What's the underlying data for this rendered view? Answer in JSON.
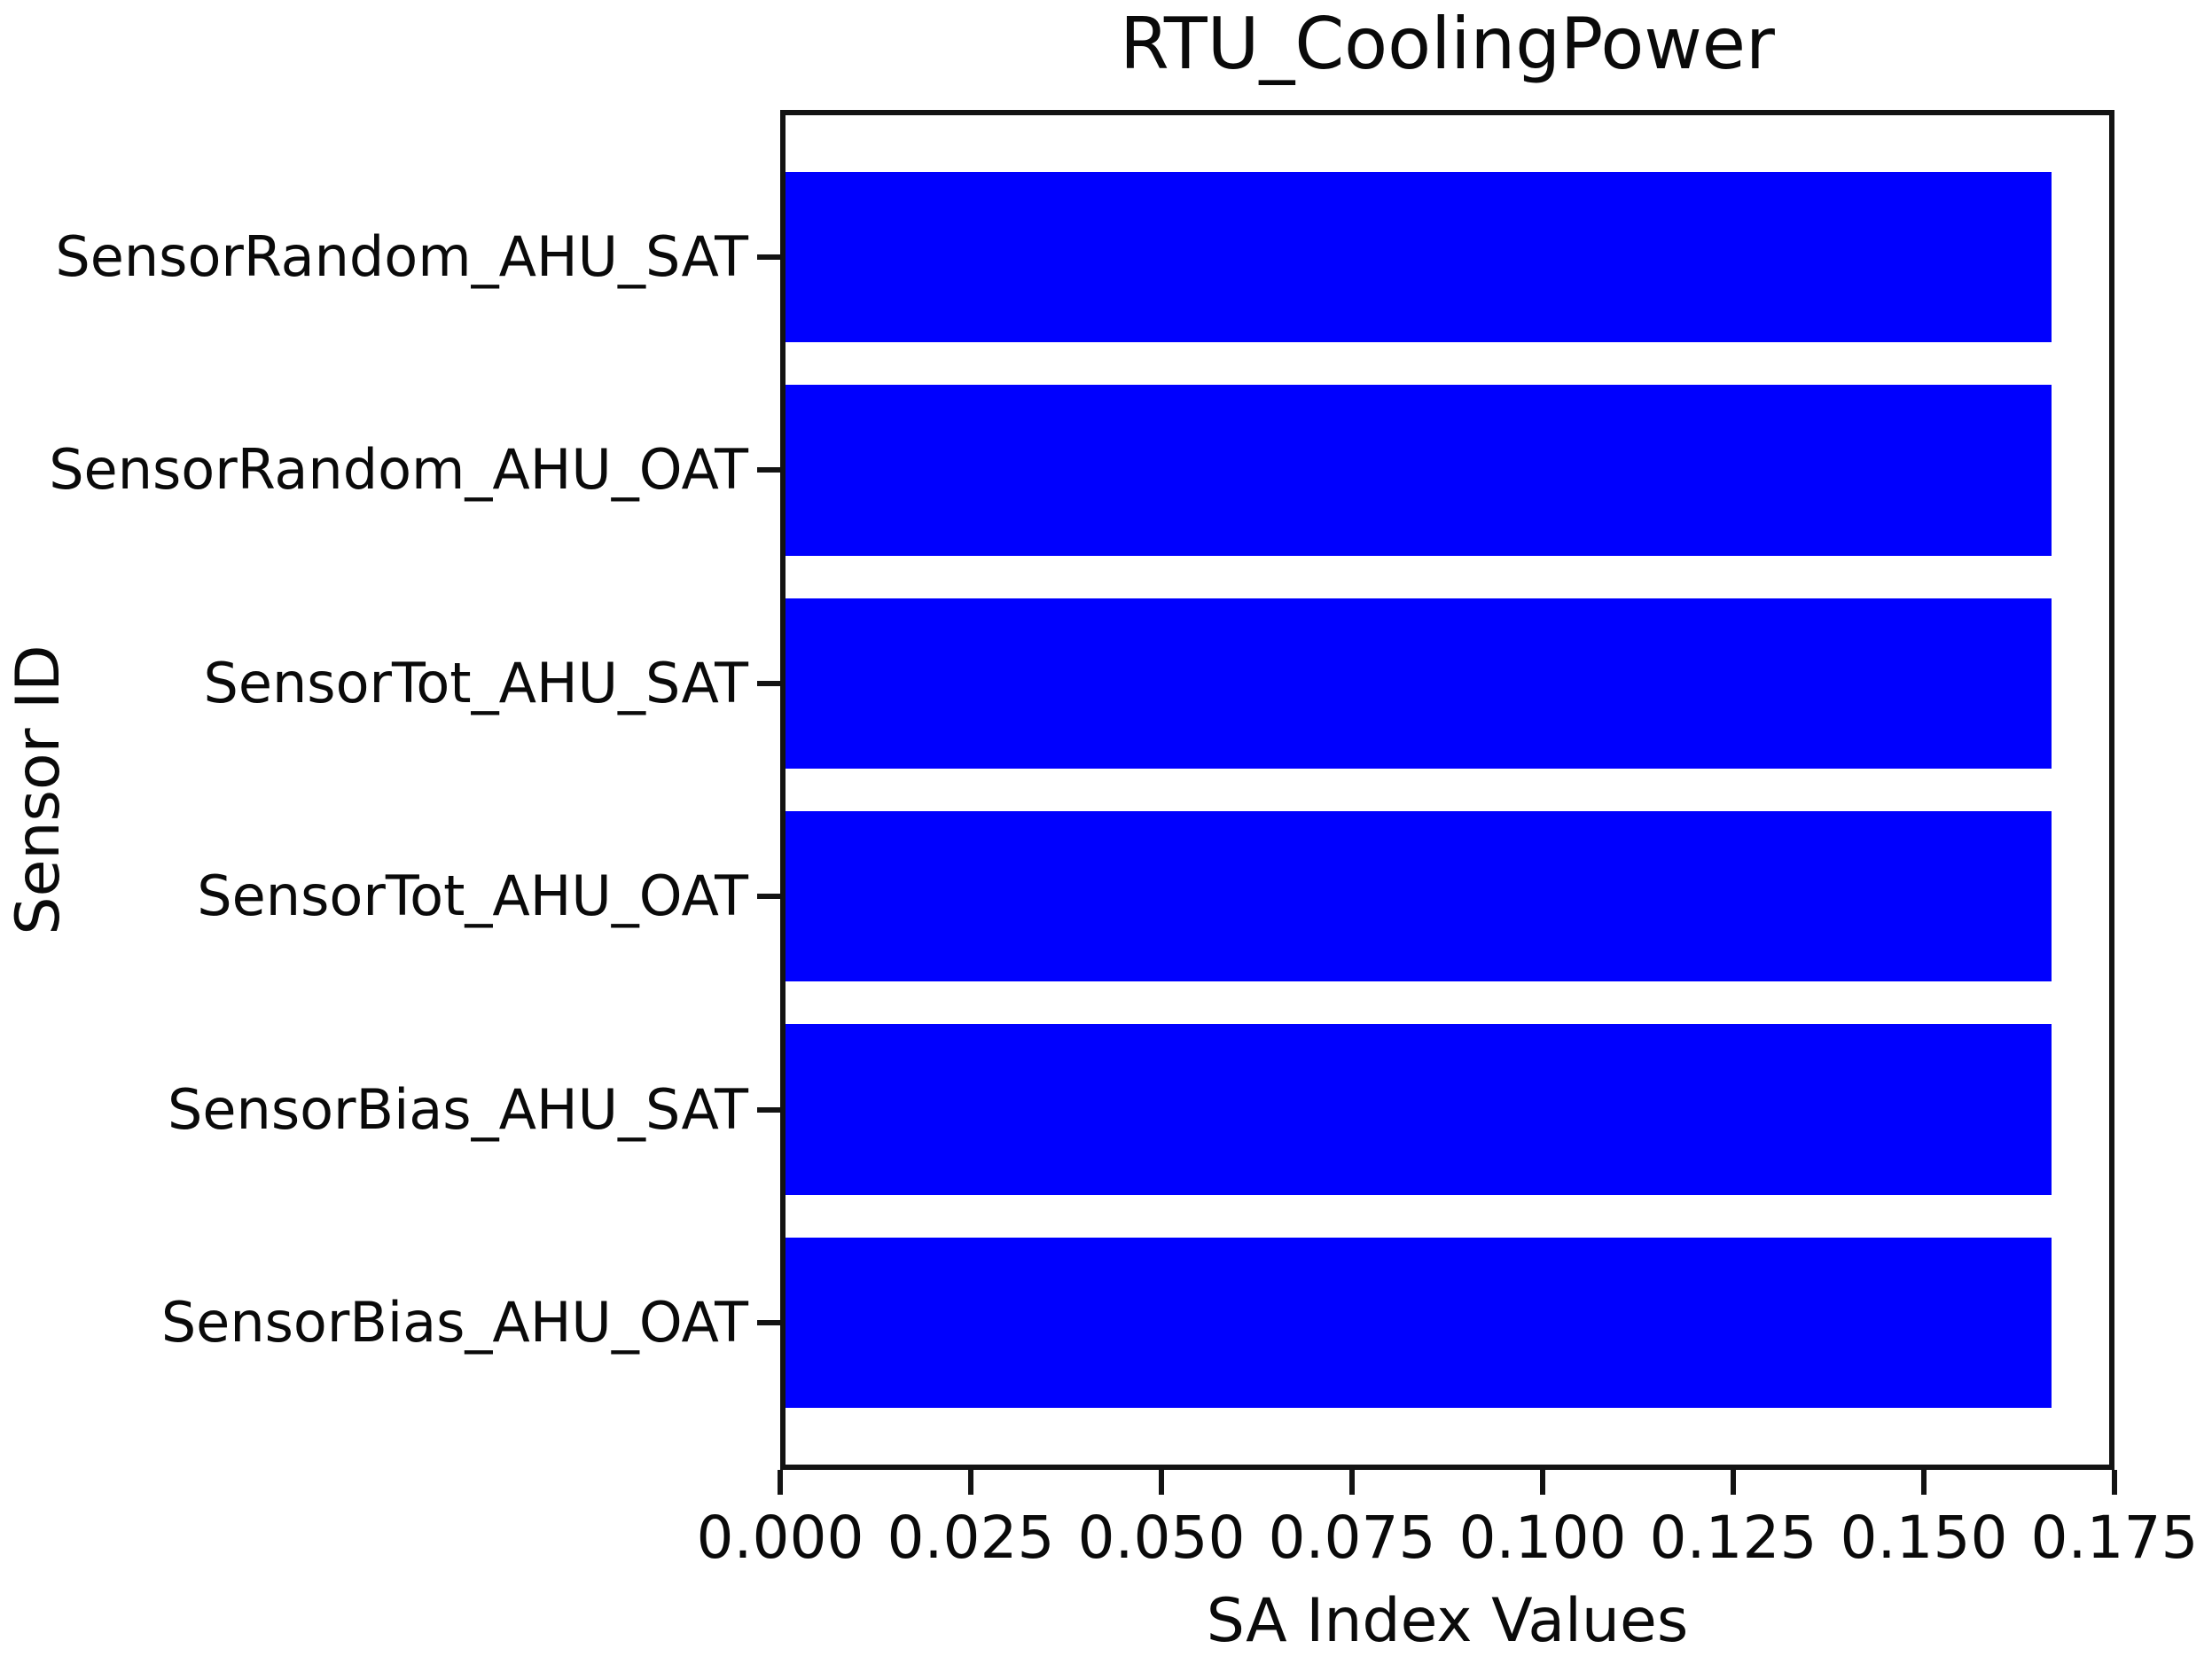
{
  "chart_data": {
    "type": "bar",
    "orientation": "horizontal",
    "title": "RTU_CoolingPower",
    "xlabel": "SA Index Values",
    "ylabel": "Sensor ID",
    "categories": [
      "SensorRandom_AHU_SAT",
      "SensorRandom_AHU_OAT",
      "SensorTot_AHU_SAT",
      "SensorTot_AHU_OAT",
      "SensorBias_AHU_SAT",
      "SensorBias_AHU_OAT"
    ],
    "values": [
      0.1667,
      0.1667,
      0.1667,
      0.1667,
      0.1667,
      0.1667
    ],
    "xlim": [
      0.0,
      0.175
    ],
    "x_tick_labels": [
      "0.000",
      "0.025",
      "0.050",
      "0.075",
      "0.100",
      "0.125",
      "0.150",
      "0.175"
    ],
    "bar_color": "#0000fe",
    "grid": false,
    "legend": null
  }
}
